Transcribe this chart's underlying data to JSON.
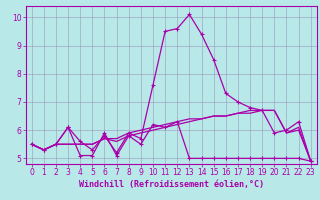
{
  "xlabel": "Windchill (Refroidissement éolien,°C)",
  "background_color": "#b8e8e8",
  "grid_color": "#9999bb",
  "line_color": "#aa00aa",
  "xlim": [
    -0.5,
    23.5
  ],
  "ylim": [
    4.8,
    10.4
  ],
  "xticks": [
    0,
    1,
    2,
    3,
    4,
    5,
    6,
    7,
    8,
    9,
    10,
    11,
    12,
    13,
    14,
    15,
    16,
    17,
    18,
    19,
    20,
    21,
    22,
    23
  ],
  "yticks": [
    5,
    6,
    7,
    8,
    9,
    10
  ],
  "hours": [
    0,
    1,
    2,
    3,
    4,
    5,
    6,
    7,
    8,
    9,
    10,
    11,
    12,
    13,
    14,
    15,
    16,
    17,
    18,
    19,
    20,
    21,
    22,
    23
  ],
  "line1": [
    5.5,
    5.3,
    5.5,
    6.1,
    5.1,
    5.1,
    5.9,
    5.1,
    5.8,
    5.5,
    6.2,
    6.1,
    6.3,
    5.0,
    5.0,
    5.0,
    5.0,
    5.0,
    5.0,
    5.0,
    5.0,
    5.0,
    5.0,
    4.9
  ],
  "line2": [
    5.5,
    5.3,
    5.5,
    6.1,
    5.6,
    5.3,
    5.8,
    5.2,
    5.9,
    5.7,
    7.6,
    9.5,
    9.6,
    10.1,
    9.4,
    8.5,
    7.3,
    7.0,
    6.8,
    6.7,
    5.9,
    6.0,
    6.3,
    4.9
  ],
  "line3": [
    5.5,
    5.3,
    5.5,
    5.5,
    5.5,
    5.5,
    5.7,
    5.6,
    5.8,
    5.9,
    6.0,
    6.1,
    6.2,
    6.3,
    6.4,
    6.5,
    6.5,
    6.6,
    6.6,
    6.7,
    6.7,
    5.9,
    6.0,
    4.9
  ],
  "line4": [
    5.5,
    5.3,
    5.5,
    5.5,
    5.5,
    5.5,
    5.7,
    5.7,
    5.9,
    6.0,
    6.1,
    6.2,
    6.3,
    6.4,
    6.4,
    6.5,
    6.5,
    6.6,
    6.7,
    6.7,
    6.7,
    5.9,
    6.1,
    4.9
  ],
  "tick_fontsize": 5.5,
  "xlabel_fontsize": 6.0,
  "linewidth": 0.9,
  "marker_size": 2.5
}
